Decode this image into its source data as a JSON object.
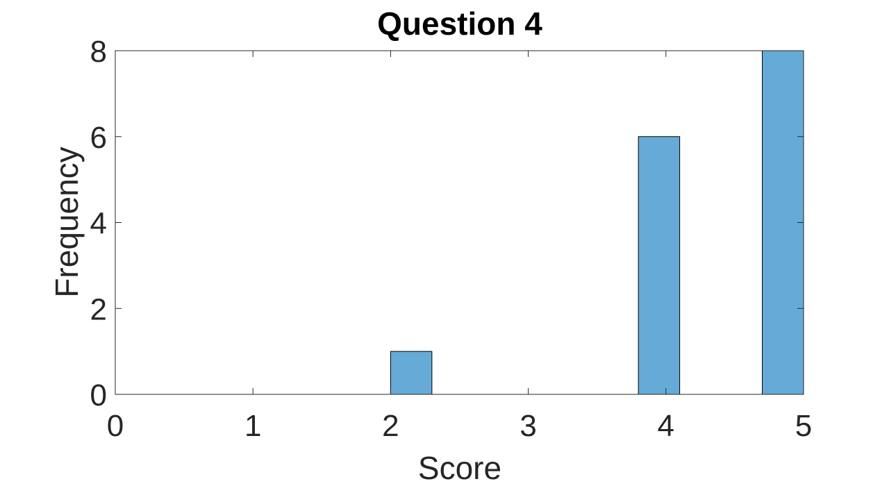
{
  "chart_data": {
    "type": "bar",
    "title": "Question 4",
    "xlabel": "Score",
    "ylabel": "Frequency",
    "xlim": [
      0,
      5
    ],
    "ylim": [
      0,
      8
    ],
    "xticks": [
      "0",
      "1",
      "2",
      "3",
      "4",
      "5"
    ],
    "yticks": [
      "0",
      "2",
      "4",
      "6",
      "8"
    ],
    "grid": false,
    "bar_color": "#66aad7",
    "bins": [
      {
        "x0": 2.0,
        "x1": 2.3,
        "value": 1
      },
      {
        "x0": 3.8,
        "x1": 4.1,
        "value": 6
      },
      {
        "x0": 4.7,
        "x1": 5.0,
        "value": 8
      }
    ]
  }
}
